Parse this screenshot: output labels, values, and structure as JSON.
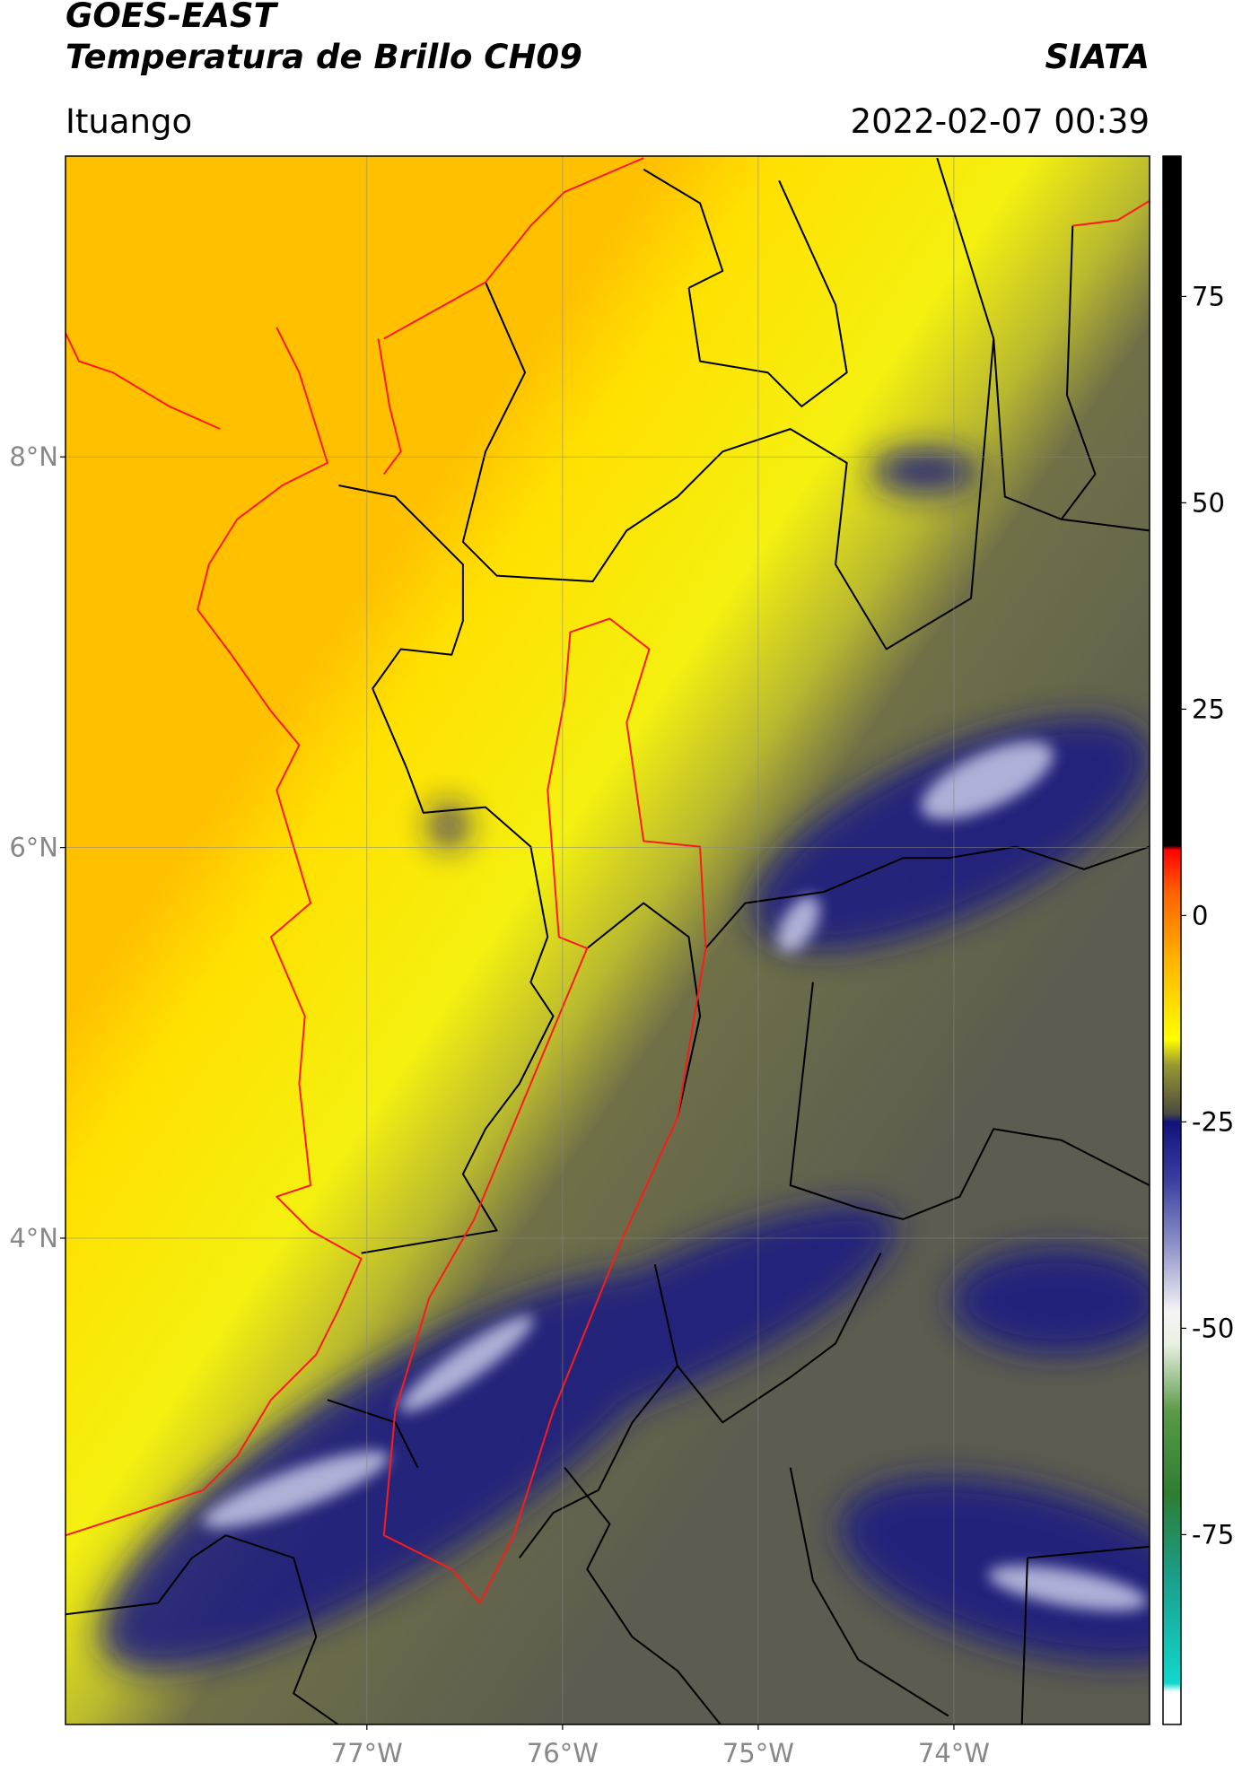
{
  "header": {
    "satellite": "GOES-EAST",
    "product": "Temperatura de Brillo CH09",
    "source": "SIATA",
    "location": "Ituango",
    "datetime": "2022-02-07 00:39"
  },
  "map": {
    "lat_range": [
      1.51,
      9.54
    ],
    "lon_range": [
      -78.54,
      -73.0
    ],
    "lat_ticks": [
      {
        "value": 8,
        "label": "8°N"
      },
      {
        "value": 6,
        "label": "6°N"
      },
      {
        "value": 4,
        "label": "4°N"
      }
    ],
    "lon_ticks": [
      {
        "value": -77,
        "label": "77°W"
      },
      {
        "value": -76,
        "label": "76°W"
      },
      {
        "value": -75,
        "label": "75°W"
      },
      {
        "value": -74,
        "label": "74°W"
      }
    ]
  },
  "colorbar": {
    "range": [
      -98,
      92
    ],
    "ticks": [
      75,
      50,
      25,
      0,
      -25,
      -50,
      -75
    ],
    "stops": [
      {
        "value": -98,
        "color": "#ffffff"
      },
      {
        "value": -94,
        "color": "#ffffff"
      },
      {
        "value": -93,
        "color": "#10d8cc"
      },
      {
        "value": -80,
        "color": "#1a9e8a"
      },
      {
        "value": -70,
        "color": "#2e7d32"
      },
      {
        "value": -60,
        "color": "#5a9a48"
      },
      {
        "value": -52,
        "color": "#e8f0e0"
      },
      {
        "value": -48,
        "color": "#f5f5f5"
      },
      {
        "value": -40,
        "color": "#8f93c8"
      },
      {
        "value": -32,
        "color": "#3a3fa0"
      },
      {
        "value": -25,
        "color": "#10127a"
      },
      {
        "value": -24,
        "color": "#4a4a40"
      },
      {
        "value": -18,
        "color": "#9a9a30"
      },
      {
        "value": -15,
        "color": "#ffff00"
      },
      {
        "value": -5,
        "color": "#ffb000"
      },
      {
        "value": 3,
        "color": "#ff6000"
      },
      {
        "value": 8,
        "color": "#ff0000"
      },
      {
        "value": 8.5,
        "color": "#000000"
      },
      {
        "value": 92,
        "color": "#000000"
      }
    ]
  }
}
